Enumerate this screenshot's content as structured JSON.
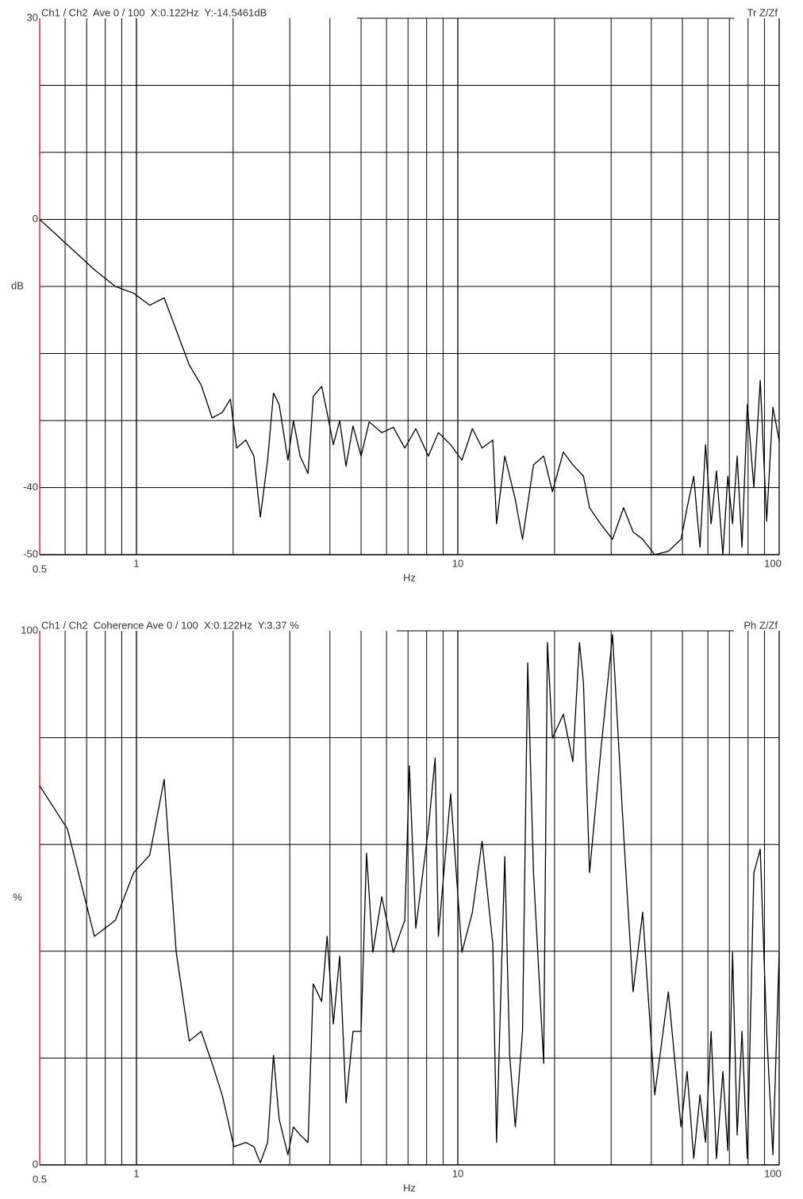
{
  "chart_data": [
    {
      "type": "line",
      "title": "Ch1 / Ch2  Ave 0 / 100  X:0.122Hz  Y:-14.5461dB",
      "annotation": "Tr Z/Zf",
      "xlabel": "Hz",
      "ylabel": "dB",
      "log_x": true,
      "grid": true,
      "color": "#000000",
      "axis_color": "#e03030",
      "xlim": [
        0.5,
        100
      ],
      "xticks": [
        0.5,
        1,
        10,
        100
      ],
      "minor_xticks": [
        0.6,
        0.7,
        0.8,
        0.9,
        2,
        3,
        4,
        5,
        6,
        7,
        8,
        9,
        20,
        30,
        40,
        50,
        60,
        70,
        80,
        90
      ],
      "ylim": [
        -50,
        30
      ],
      "yticks": [
        30,
        0,
        -40,
        -50
      ],
      "minor_yticks": [
        20,
        10,
        -10,
        -20,
        -30
      ],
      "x": [
        0.5,
        0.74,
        0.86,
        0.98,
        1.1,
        1.22,
        1.46,
        1.59,
        1.72,
        1.85,
        1.96,
        2.05,
        2.19,
        2.32,
        2.43,
        2.56,
        2.67,
        2.78,
        2.96,
        3.08,
        3.23,
        3.42,
        3.55,
        3.77,
        3.92,
        4.1,
        4.29,
        4.49,
        4.72,
        5,
        5.3,
        5.8,
        6.3,
        6.84,
        7.4,
        8.1,
        8.7,
        9.5,
        10.3,
        11.1,
        11.9,
        12.85,
        13.2,
        14,
        14.5,
        15.1,
        15.9,
        17.2,
        18.5,
        19.7,
        21.3,
        22.8,
        24.6,
        25.7,
        27.8,
        30.3,
        32.8,
        35.1,
        37.6,
        41,
        45.2,
        49.5,
        51.7,
        54.2,
        56.7,
        59,
        61.4,
        63.8,
        66.8,
        69.2,
        71.6,
        74,
        76.6,
        79.6,
        83.4,
        87.3,
        91.4,
        95.6,
        100
      ],
      "values": [
        0,
        -7.5,
        -10,
        -11,
        -12.8,
        -11.7,
        -21.7,
        -24.7,
        -29.6,
        -28.8,
        -26.8,
        -34.1,
        -32.9,
        -35.3,
        -44.4,
        -35.9,
        -25.9,
        -27.6,
        -35.9,
        -30,
        -35.3,
        -37.9,
        -26.4,
        -24.9,
        -28.8,
        -33.6,
        -30,
        -36.8,
        -30.8,
        -35.3,
        -30.2,
        -31.8,
        -31,
        -34.1,
        -31.2,
        -35.3,
        -31.8,
        -33.6,
        -35.9,
        -31.2,
        -34.1,
        -32.9,
        -45.4,
        -35.3,
        -38.3,
        -41.8,
        -47.7,
        -36.6,
        -35.3,
        -40.6,
        -34.7,
        -36.6,
        -38.3,
        -43,
        -45.4,
        -47.7,
        -43,
        -46.6,
        -47.7,
        -50,
        -49.5,
        -47.7,
        -43,
        -38.3,
        -48.9,
        -33.6,
        -45.4,
        -37.5,
        -50,
        -38.3,
        -45.4,
        -35.3,
        -48.9,
        -27.6,
        -40,
        -24,
        -45,
        -28,
        -33
      ]
    },
    {
      "type": "line",
      "title": "Ch1 / Ch2  Coherence Ave 0 / 100  X:0.122Hz  Y:3.37 %",
      "annotation": "Ph Z/Zf",
      "xlabel": "Hz",
      "ylabel": "%",
      "log_x": true,
      "grid": true,
      "color": "#000000",
      "axis_color": "#e03030",
      "xlim": [
        0.5,
        100
      ],
      "xticks": [
        0.5,
        1,
        10,
        100
      ],
      "minor_xticks": [
        0.6,
        0.7,
        0.8,
        0.9,
        2,
        3,
        4,
        5,
        6,
        7,
        8,
        9,
        20,
        30,
        40,
        50,
        60,
        70,
        80,
        90
      ],
      "ylim": [
        0,
        100
      ],
      "yticks": [
        100,
        0
      ],
      "minor_yticks": [
        80,
        60,
        40,
        20
      ],
      "x": [
        0.5,
        0.61,
        0.74,
        0.86,
        0.98,
        1.1,
        1.22,
        1.33,
        1.46,
        1.59,
        1.72,
        1.85,
        2.01,
        2.19,
        2.32,
        2.43,
        2.56,
        2.67,
        2.78,
        2.96,
        3.08,
        3.23,
        3.42,
        3.55,
        3.77,
        3.92,
        4.1,
        4.29,
        4.49,
        4.72,
        5,
        5.2,
        5.44,
        5.8,
        6.3,
        6.84,
        7.07,
        7.4,
        8.1,
        8.5,
        8.7,
        9.5,
        10.3,
        11.1,
        11.9,
        12.85,
        13.2,
        14,
        14.5,
        15.1,
        15.9,
        16.5,
        17.2,
        18.5,
        19,
        19.7,
        21.3,
        22.8,
        23.9,
        24.6,
        25.7,
        27.8,
        30.3,
        32.8,
        35.1,
        37.6,
        41,
        45.2,
        49.5,
        51.7,
        54.2,
        56.7,
        59,
        61.4,
        63.8,
        66.8,
        69.2,
        71.6,
        74,
        76.6,
        79.6,
        83.4,
        87.3,
        91.4,
        95.6,
        100
      ],
      "values": [
        71,
        62.9,
        42.8,
        45.8,
        54.7,
        58,
        72.2,
        39.8,
        23.2,
        25,
        19,
        13,
        3.4,
        4.2,
        3.4,
        0.4,
        4.2,
        20.5,
        8.6,
        1.9,
        7.1,
        5.6,
        4.2,
        33.9,
        30.6,
        42.8,
        26.4,
        39.1,
        11.6,
        25,
        25,
        58.4,
        39.8,
        50.2,
        39.8,
        45.8,
        74.7,
        44.3,
        62.9,
        76.2,
        42.8,
        69.5,
        39.8,
        47.3,
        60.6,
        41.3,
        4.2,
        57.7,
        20.5,
        7.1,
        25,
        94,
        54.7,
        19,
        97.8,
        79.9,
        84.4,
        75.5,
        97.8,
        90.3,
        54.7,
        77,
        99.3,
        62.1,
        32.4,
        47.3,
        13.1,
        32.4,
        7.1,
        17.5,
        1.2,
        13.1,
        4.2,
        25,
        1.2,
        17.5,
        2.7,
        39.8,
        5.6,
        25,
        1.2,
        54.7,
        59.1,
        25,
        1.9,
        39.8
      ]
    }
  ]
}
